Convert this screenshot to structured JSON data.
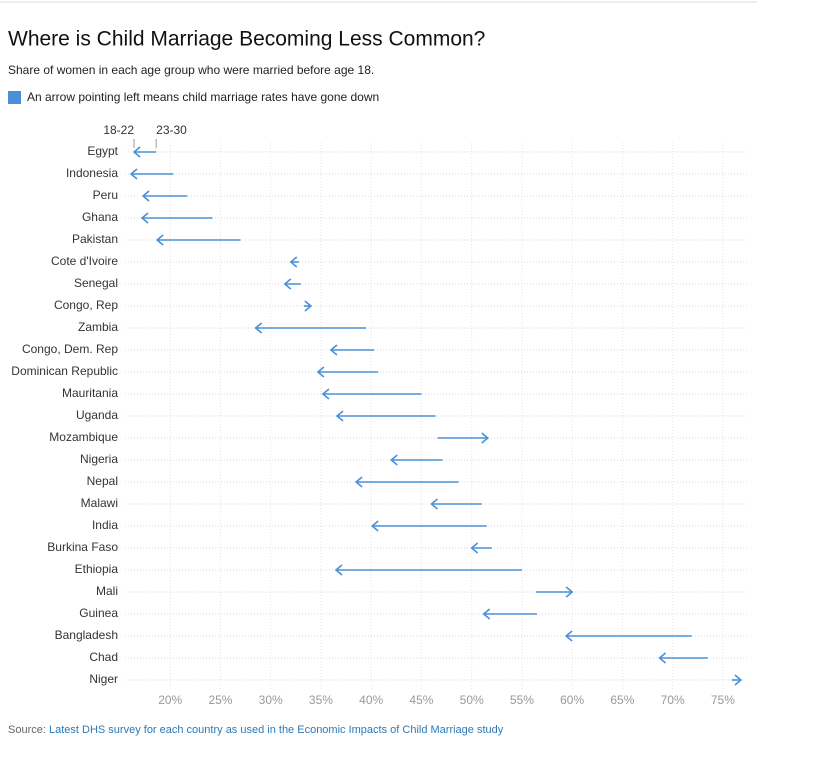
{
  "chart_data": {
    "type": "arrow",
    "title": "Where is Child Marriage Becoming Less Common?",
    "subtitle": "Share of women in each age group who were married before age 18.",
    "legend_note": "An arrow pointing left means child marriage rates have gone down",
    "source": {
      "label": "Source:",
      "text": "Latest DHS survey for each country as used in the Economic Impacts of Child Marriage study"
    },
    "color": "#4a90d9",
    "grid": true,
    "categories": [
      "Egypt",
      "Indonesia",
      "Peru",
      "Ghana",
      "Pakistan",
      "Cote d'Ivoire",
      "Senegal",
      "Congo, Rep",
      "Zambia",
      "Congo, Dem. Rep",
      "Dominican Republic",
      "Mauritania",
      "Uganda",
      "Mozambique",
      "Nigeria",
      "Nepal",
      "Malawi",
      "India",
      "Burkina Faso",
      "Ethiopia",
      "Mali",
      "Guinea",
      "Bangladesh",
      "Chad",
      "Niger"
    ],
    "series": [
      {
        "name": "18-22",
        "values": [
          16.4,
          16.1,
          17.3,
          17.2,
          18.7,
          32.0,
          31.4,
          34.0,
          28.5,
          36.0,
          34.7,
          35.2,
          36.6,
          51.6,
          42.0,
          38.5,
          46.0,
          40.1,
          50.0,
          36.5,
          60.0,
          51.2,
          59.4,
          68.7,
          76.8
        ]
      },
      {
        "name": "23-30",
        "values": [
          18.6,
          20.3,
          21.7,
          24.2,
          27.0,
          32.8,
          33.0,
          33.3,
          39.5,
          40.3,
          40.7,
          45.0,
          46.4,
          46.6,
          47.1,
          48.7,
          51.0,
          51.5,
          52.0,
          55.0,
          56.4,
          56.5,
          71.9,
          73.5,
          75.9
        ]
      }
    ],
    "xlim": [
      15.5,
      77.5
    ],
    "xticks": [
      {
        "value": 20,
        "label": "20%"
      },
      {
        "value": 25,
        "label": "25%"
      },
      {
        "value": 30,
        "label": "30%"
      },
      {
        "value": 35,
        "label": "35%"
      },
      {
        "value": 40,
        "label": "40%"
      },
      {
        "value": 45,
        "label": "45%"
      },
      {
        "value": 50,
        "label": "50%"
      },
      {
        "value": 55,
        "label": "55%"
      },
      {
        "value": 60,
        "label": "60%"
      },
      {
        "value": 65,
        "label": "65%"
      },
      {
        "value": 70,
        "label": "70%"
      },
      {
        "value": 75,
        "label": "75%"
      }
    ]
  }
}
